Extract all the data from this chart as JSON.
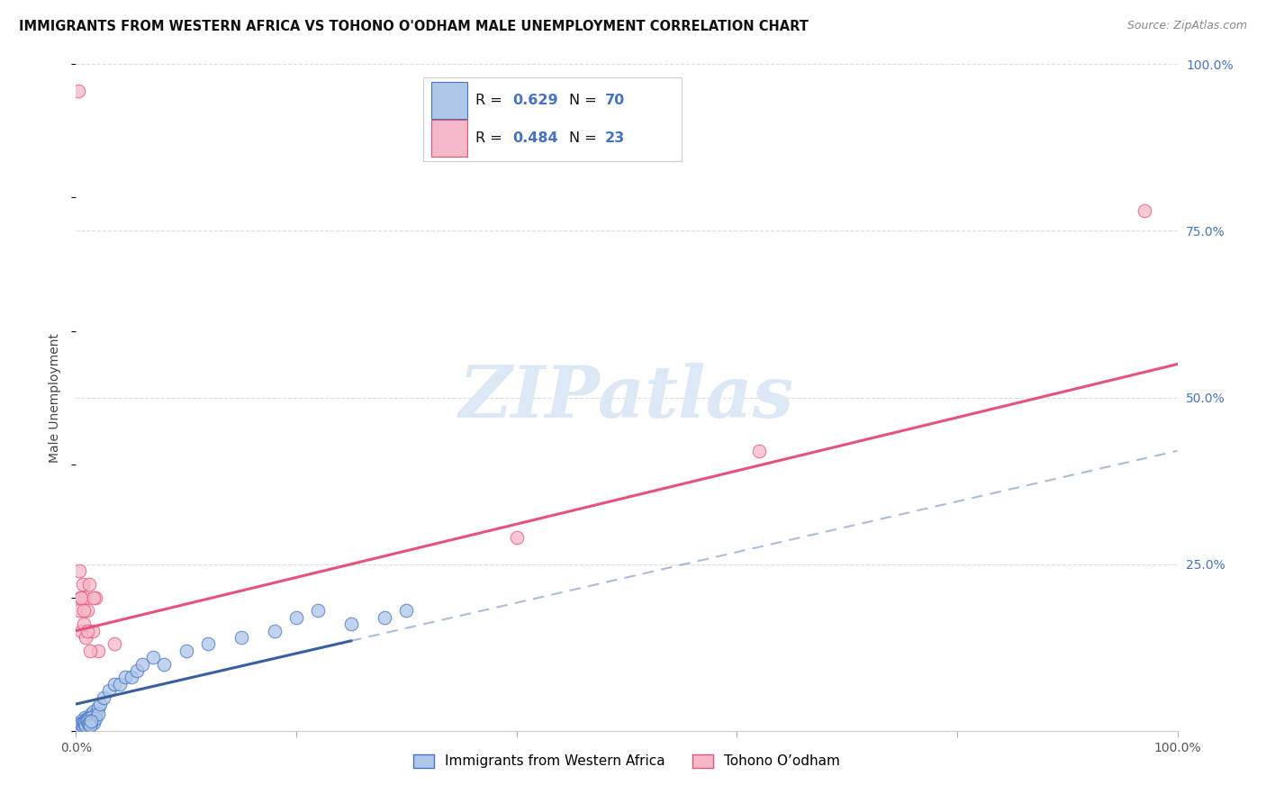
{
  "title": "IMMIGRANTS FROM WESTERN AFRICA VS TOHONO O'ODHAM MALE UNEMPLOYMENT CORRELATION CHART",
  "source": "Source: ZipAtlas.com",
  "ylabel": "Male Unemployment",
  "y_tick_labels": [
    "100.0%",
    "75.0%",
    "50.0%",
    "25.0%"
  ],
  "y_tick_positions": [
    1.0,
    0.75,
    0.5,
    0.25
  ],
  "legend_blue_label": "Immigrants from Western Africa",
  "legend_pink_label": "Tohono O’odham",
  "blue_scatter_color": "#aec6e8",
  "blue_edge_color": "#4472c4",
  "pink_scatter_color": "#f4b8c8",
  "pink_edge_color": "#e8517a",
  "blue_line_color": "#3a5fa0",
  "pink_line_color": "#e8517a",
  "dashed_line_color": "#7090c0",
  "watermark_color": "#dce8f5",
  "background_color": "#ffffff",
  "grid_color": "#dddddd",
  "tick_color": "#4472c4",
  "blue_r": "0.629",
  "blue_n": "70",
  "pink_r": "0.484",
  "pink_n": "23",
  "blue_slope": 0.38,
  "blue_intercept": 0.04,
  "pink_slope": 0.4,
  "pink_intercept": 0.15,
  "blue_x": [
    0.001,
    0.002,
    0.003,
    0.004,
    0.005,
    0.006,
    0.007,
    0.008,
    0.009,
    0.01,
    0.011,
    0.012,
    0.013,
    0.014,
    0.015,
    0.016,
    0.018,
    0.02,
    0.001,
    0.002,
    0.003,
    0.004,
    0.005,
    0.006,
    0.007,
    0.008,
    0.009,
    0.01,
    0.011,
    0.012,
    0.013,
    0.014,
    0.015,
    0.016,
    0.018,
    0.02,
    0.001,
    0.002,
    0.003,
    0.004,
    0.005,
    0.006,
    0.007,
    0.008,
    0.009,
    0.01,
    0.011,
    0.012,
    0.013,
    0.014,
    0.022,
    0.025,
    0.03,
    0.035,
    0.04,
    0.045,
    0.05,
    0.055,
    0.06,
    0.07,
    0.08,
    0.1,
    0.12,
    0.15,
    0.18,
    0.2,
    0.22,
    0.25,
    0.28,
    0.3
  ],
  "blue_y": [
    0.005,
    0.01,
    0.008,
    0.012,
    0.01,
    0.015,
    0.01,
    0.02,
    0.015,
    0.018,
    0.012,
    0.02,
    0.015,
    0.025,
    0.02,
    0.03,
    0.025,
    0.035,
    0.008,
    0.005,
    0.01,
    0.008,
    0.015,
    0.012,
    0.008,
    0.015,
    0.01,
    0.012,
    0.018,
    0.015,
    0.01,
    0.02,
    0.015,
    0.012,
    0.018,
    0.025,
    0.005,
    0.003,
    0.008,
    0.005,
    0.01,
    0.008,
    0.012,
    0.01,
    0.008,
    0.015,
    0.01,
    0.012,
    0.008,
    0.015,
    0.04,
    0.05,
    0.06,
    0.07,
    0.07,
    0.08,
    0.08,
    0.09,
    0.1,
    0.11,
    0.1,
    0.12,
    0.13,
    0.14,
    0.15,
    0.17,
    0.18,
    0.16,
    0.17,
    0.18
  ],
  "pink_x": [
    0.002,
    0.003,
    0.004,
    0.005,
    0.006,
    0.007,
    0.008,
    0.009,
    0.01,
    0.012,
    0.015,
    0.018,
    0.02,
    0.003,
    0.005,
    0.007,
    0.01,
    0.013,
    0.016,
    0.035,
    0.4,
    0.62,
    0.97
  ],
  "pink_y": [
    0.96,
    0.18,
    0.2,
    0.15,
    0.22,
    0.16,
    0.2,
    0.14,
    0.18,
    0.22,
    0.15,
    0.2,
    0.12,
    0.24,
    0.2,
    0.18,
    0.15,
    0.12,
    0.2,
    0.13,
    0.29,
    0.42,
    0.78
  ]
}
